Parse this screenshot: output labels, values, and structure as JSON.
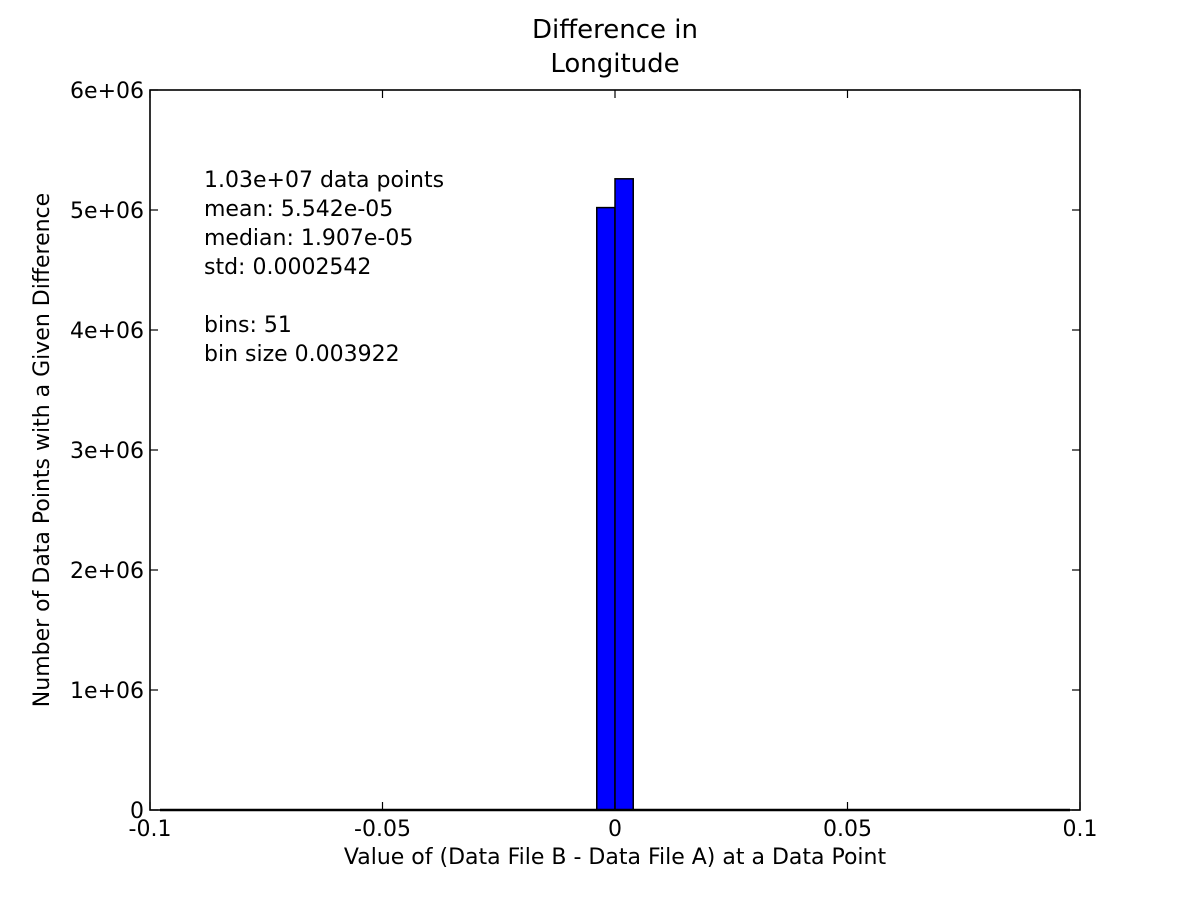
{
  "chart_data": {
    "type": "bar",
    "title_lines": [
      "Difference in",
      "Longitude"
    ],
    "xlabel": "Value of (Data File B - Data File A) at a Data Point",
    "ylabel": "Number of Data Points with a Given Difference",
    "xlim": [
      -0.1,
      0.1
    ],
    "ylim": [
      0,
      6000000
    ],
    "x_ticks": [
      -0.1,
      -0.05,
      0,
      0.05,
      0.1
    ],
    "x_tick_labels": [
      "-0.1",
      "-0.05",
      "0",
      "0.05",
      "0.1"
    ],
    "y_ticks": [
      0,
      1000000,
      2000000,
      3000000,
      4000000,
      5000000,
      6000000
    ],
    "y_tick_labels": [
      "0",
      "1e+06",
      "2e+06",
      "3e+06",
      "4e+06",
      "5e+06",
      "6e+06"
    ],
    "grid": false,
    "bar_color": "#0000ff",
    "bin_edges": [
      -0.1,
      0.1
    ],
    "bins": [
      {
        "x0": -0.003922,
        "x1": 0.0,
        "count": 5020000
      },
      {
        "x0": 0.0,
        "x1": 0.003922,
        "count": 5260000
      }
    ],
    "stats_lines": [
      "1.03e+07 data points",
      "mean: 5.542e-05",
      "median: 1.907e-05",
      "std: 0.0002542",
      "",
      "bins: 51",
      "bin size 0.003922"
    ]
  }
}
